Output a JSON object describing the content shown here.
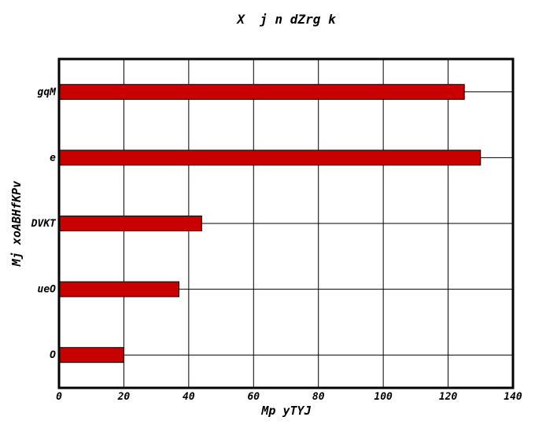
{
  "chart_data": {
    "type": "bar",
    "orientation": "horizontal",
    "title": "X  j n dZrg k",
    "xlabel": "Mp yTYJ",
    "ylabel": "Mj xoABHfKPv",
    "categories": [
      "O",
      "ueO",
      "DVKT",
      "e",
      "gqM"
    ],
    "values": [
      20,
      37,
      44,
      130,
      125
    ],
    "xlim": [
      0,
      140
    ],
    "xticks": [
      0,
      20,
      40,
      60,
      80,
      100,
      120,
      140
    ],
    "grid": true,
    "bar_color": "#c80000",
    "legend": "none"
  }
}
